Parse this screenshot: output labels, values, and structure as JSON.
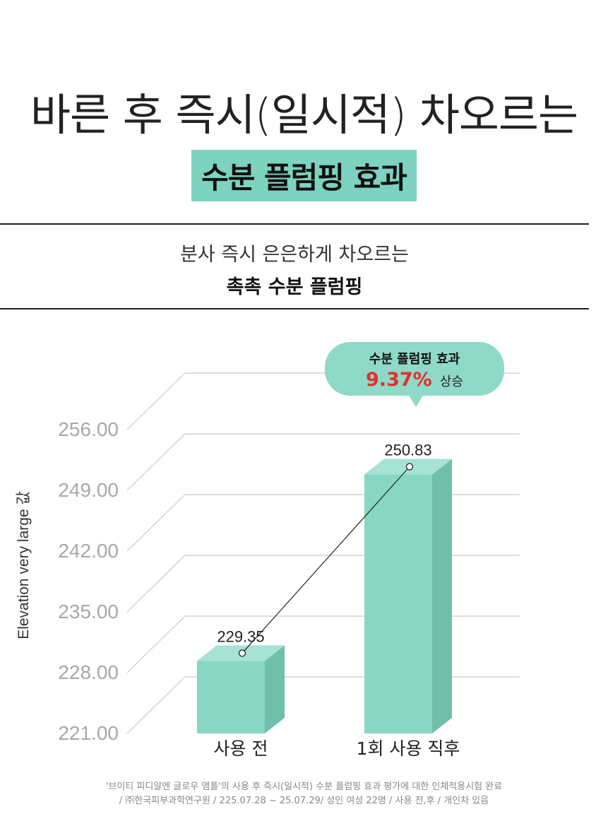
{
  "header": {
    "headline": "바른 후 즉시(일시적) 차오르는",
    "highlight": "수분 플럼핑 효과"
  },
  "subheader": {
    "line1": "분사 즉시 은은하게 차오르는",
    "line2": "촉촉 수분 플럼핑"
  },
  "callout": {
    "line1": "수분 플럼핑 효과",
    "percent": "9.37%",
    "suffix": "상승"
  },
  "colors": {
    "accent": "#7dd3bf",
    "bar_front": "#88d6c4",
    "bar_side": "#6fbfab",
    "bar_top": "#a6e3d4",
    "callout_bg": "#8ed9c7",
    "percent": "#e0322b"
  },
  "chart_data": {
    "type": "bar",
    "categories": [
      "사용 전",
      "1회 사용 직후"
    ],
    "values": [
      229.35,
      250.83
    ],
    "value_labels": [
      "229.35",
      "250.83"
    ],
    "ylabel": "Elevation very large 값",
    "yticks": [
      "256.00",
      "249.00",
      "242.00",
      "235.00",
      "228.00",
      "221.00"
    ],
    "ylim": [
      221,
      256
    ],
    "grid": true
  },
  "footnote": {
    "line1": "'브이티 피디알엔 글로우 앰플'의 사용 후 즉시(일시적) 수분 플럼핑 효과 평가에 대한 인체적용시험 완료",
    "line2": "/ ㈜한국피부과학연구원 / 225.07.28 ~ 25.07.29/ 성인 여성 22명 / 사용 전,후 / 개인차 있음"
  }
}
